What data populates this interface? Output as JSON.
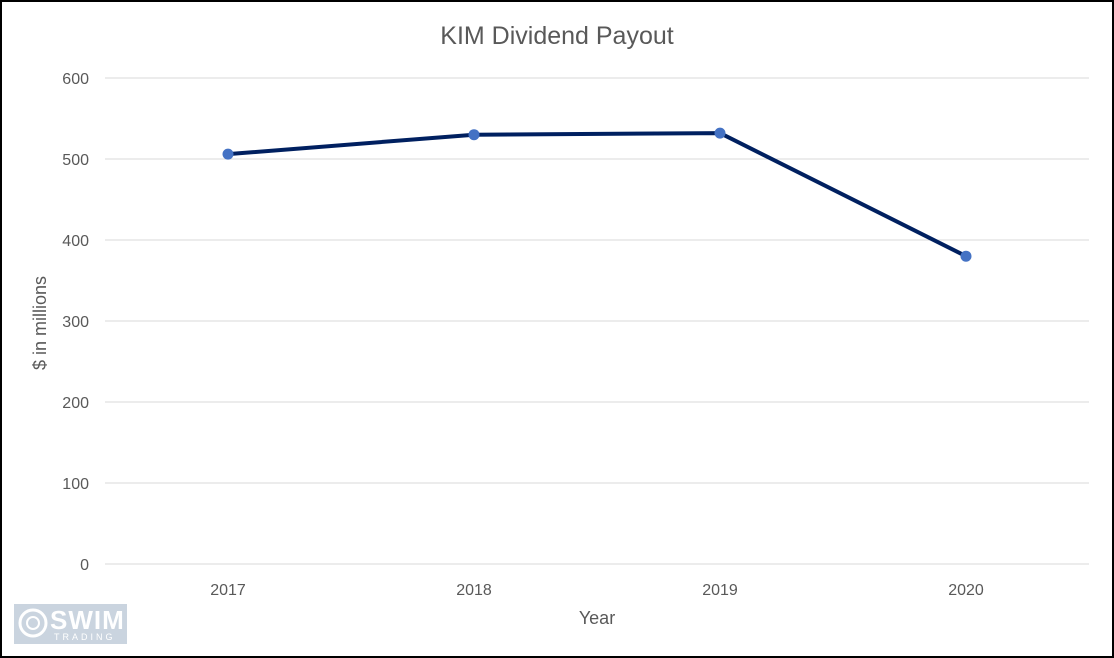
{
  "chart_data": {
    "type": "line",
    "title": "KIM Dividend Payout",
    "xlabel": "Year",
    "ylabel": "$ in millions",
    "categories": [
      "2017",
      "2018",
      "2019",
      "2020"
    ],
    "series": [
      {
        "values": [
          506,
          530,
          532,
          380
        ]
      }
    ],
    "ylim": [
      0,
      600
    ],
    "yticks": [
      "0",
      "100",
      "200",
      "300",
      "400",
      "500",
      "600"
    ],
    "grid": true,
    "colors": {
      "line": "#002060",
      "marker": "#4472c4",
      "grid": "#d9d9d9",
      "text": "#595959"
    }
  },
  "watermark": {
    "main": "SWIM",
    "sub": "TRADING"
  }
}
